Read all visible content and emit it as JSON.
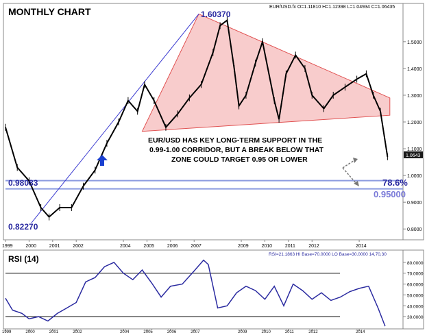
{
  "header": {
    "title": "MONTHLY CHART",
    "info": "EUR/USD.fx O=1.11810 H=1.12398 L=1.04934 C=1.06435"
  },
  "annotations": {
    "high_label": "1.60370",
    "low_label": "0.82270",
    "level_left": "0.98083",
    "fib_label": "78.6%",
    "target_label": "0.95000",
    "commentary": [
      "EUR/USD HAS KEY LONG-TERM SUPPORT IN THE",
      "0.99-1.00 CORRIDOR, BUT A BREAK BELOW THAT",
      "ZONE COULD TARGET 0.95 OR LOWER"
    ],
    "last_price_tag": "1.0643"
  },
  "rsi_panel": {
    "title": "RSI (14)",
    "info": "RSI=21.1863 HI Base=70.0000 LO Base=30.0000   14,70,30"
  },
  "colors": {
    "candle": "#000000",
    "triangle_fill": "#f7c3c3",
    "triangle_line": "#e05050",
    "trendline": "#3a3ad0",
    "level_line": "#8c9be0",
    "fib_text": "#2a2aa0",
    "target_text": "#7a7ad8",
    "arrow": "#1a40d0",
    "rsi_line": "#2a2aa0"
  },
  "chart_data": [
    {
      "type": "line",
      "title": "MONTHLY CHART",
      "series": [
        {
          "name": "EUR/USD.fx",
          "x": [
            1999.0,
            1999.5,
            2000.0,
            2000.5,
            2000.85,
            2001.3,
            2001.8,
            2002.3,
            2002.8,
            2003.3,
            2003.8,
            2004.2,
            2004.6,
            2004.9,
            2005.3,
            2005.8,
            2006.3,
            2006.8,
            2007.3,
            2007.8,
            2008.1,
            2008.4,
            2008.7,
            2008.9,
            2009.2,
            2009.6,
            2009.9,
            2010.4,
            2010.6,
            2010.9,
            2011.3,
            2011.7,
            2012.0,
            2012.5,
            2012.9,
            2013.4,
            2013.9,
            2014.3,
            2014.6,
            2014.9,
            2015.2
          ],
          "values": [
            1.18,
            1.03,
            0.98,
            0.88,
            0.845,
            0.88,
            0.88,
            0.96,
            1.02,
            1.12,
            1.2,
            1.28,
            1.24,
            1.34,
            1.28,
            1.18,
            1.23,
            1.29,
            1.34,
            1.46,
            1.56,
            1.58,
            1.4,
            1.26,
            1.3,
            1.42,
            1.5,
            1.28,
            1.21,
            1.38,
            1.45,
            1.4,
            1.3,
            1.25,
            1.3,
            1.33,
            1.36,
            1.38,
            1.3,
            1.24,
            1.07
          ]
        }
      ],
      "ylim": [
        0.78,
        1.62
      ],
      "yticks": [
        0.8,
        0.9,
        1.0,
        1.1,
        1.2,
        1.3,
        1.4,
        1.5
      ],
      "ytick_labels": [
        "0.8000",
        "0.9000",
        "1.0000",
        "1.1000",
        "1.2000",
        "1.3000",
        "1.4000",
        "1.5000"
      ],
      "xlim": [
        1999,
        2015.8
      ],
      "xticks": [
        1999,
        2000,
        2001,
        2002,
        2004,
        2005,
        2006,
        2007,
        2009,
        2010,
        2011,
        2012,
        2014
      ],
      "xtick_labels": [
        "1999",
        "2000",
        "2001",
        "2002",
        "2004",
        "2005",
        "2006",
        "2007",
        "2009",
        "2010",
        "2011",
        "2012",
        "2014"
      ],
      "levels": [
        0.98083,
        0.95
      ],
      "triangle": {
        "apex": [
          2007.2,
          1.6037
        ],
        "upper_right": [
          2015.3,
          1.29
        ],
        "lower_left": [
          2004.8,
          1.165
        ],
        "lower_right": [
          2015.3,
          1.225
        ]
      },
      "uptrend_line": {
        "from": [
          2000.1,
          0.8227
        ],
        "to": [
          2007.2,
          1.6037
        ]
      },
      "grid": false
    },
    {
      "type": "line",
      "title": "RSI (14)",
      "series": [
        {
          "name": "RSI",
          "x": [
            1999.0,
            1999.3,
            1999.7,
            2000.0,
            2000.4,
            2000.8,
            2001.2,
            2001.6,
            2002.0,
            2002.4,
            2002.8,
            2003.2,
            2003.6,
            2004.0,
            2004.4,
            2004.8,
            2005.2,
            2005.6,
            2006.0,
            2006.5,
            2007.0,
            2007.4,
            2007.6,
            2008.0,
            2008.4,
            2008.8,
            2009.2,
            2009.6,
            2010.0,
            2010.4,
            2010.8,
            2011.2,
            2011.6,
            2012.0,
            2012.4,
            2012.8,
            2013.2,
            2013.6,
            2014.0,
            2014.4,
            2014.8,
            2015.1
          ],
          "values": [
            47,
            36,
            33,
            28,
            30,
            26,
            33,
            38,
            43,
            62,
            66,
            76,
            80,
            70,
            64,
            73,
            61,
            48,
            58,
            60,
            72,
            82,
            78,
            38,
            40,
            52,
            58,
            54,
            46,
            58,
            40,
            60,
            54,
            46,
            52,
            45,
            48,
            53,
            56,
            58,
            38,
            21.19
          ]
        }
      ],
      "ylim": [
        20,
        90
      ],
      "yticks": [
        30,
        40,
        50,
        60,
        70,
        80
      ],
      "ytick_labels": [
        "30.0000",
        "40.0000",
        "50.0000",
        "60.0000",
        "70.0000",
        "80.0000"
      ],
      "levels": [
        70,
        30
      ],
      "grid": false
    }
  ]
}
